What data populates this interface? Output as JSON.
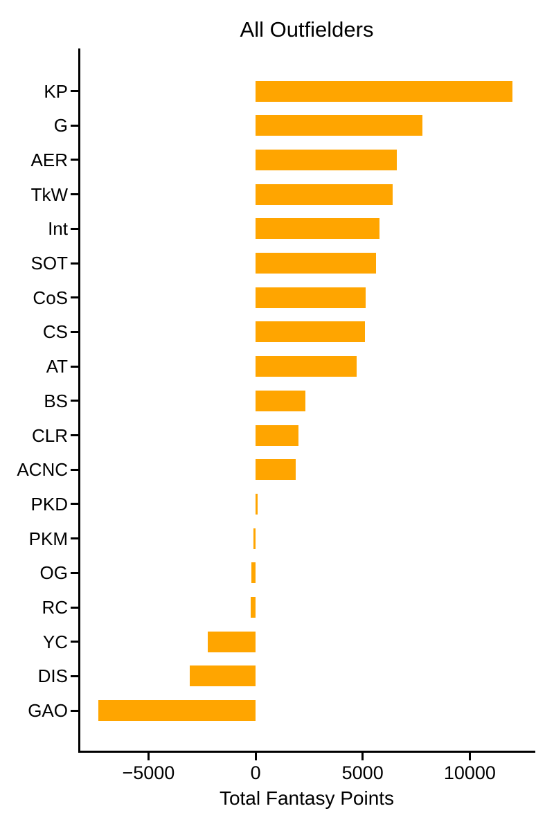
{
  "page": {
    "background_color": "#ffffff"
  },
  "chart_data": {
    "type": "bar",
    "orientation": "horizontal",
    "title": "All Outfielders",
    "xlabel": "Total Fantasy Points",
    "ylabel": "",
    "categories": [
      "KP",
      "G",
      "AER",
      "TkW",
      "Int",
      "SOT",
      "CoS",
      "CS",
      "AT",
      "BS",
      "CLR",
      "ACNC",
      "PKD",
      "PKM",
      "OG",
      "RC",
      "YC",
      "DIS",
      "GAO"
    ],
    "values": [
      12000,
      7790,
      6600,
      6410,
      5800,
      5610,
      5140,
      5120,
      4720,
      2320,
      2000,
      1870,
      110,
      -100,
      -200,
      -230,
      -2250,
      -3070,
      -7340
    ],
    "bar_color": "#FFA500",
    "axis_color": "#000000",
    "text_color": "#000000",
    "xlim": [
      -8280,
      13060
    ],
    "xticks": [
      -5000,
      0,
      5000,
      10000
    ],
    "xtick_labels": [
      "−5000",
      "0",
      "5000",
      "10000"
    ],
    "grid": false,
    "legend": null
  }
}
